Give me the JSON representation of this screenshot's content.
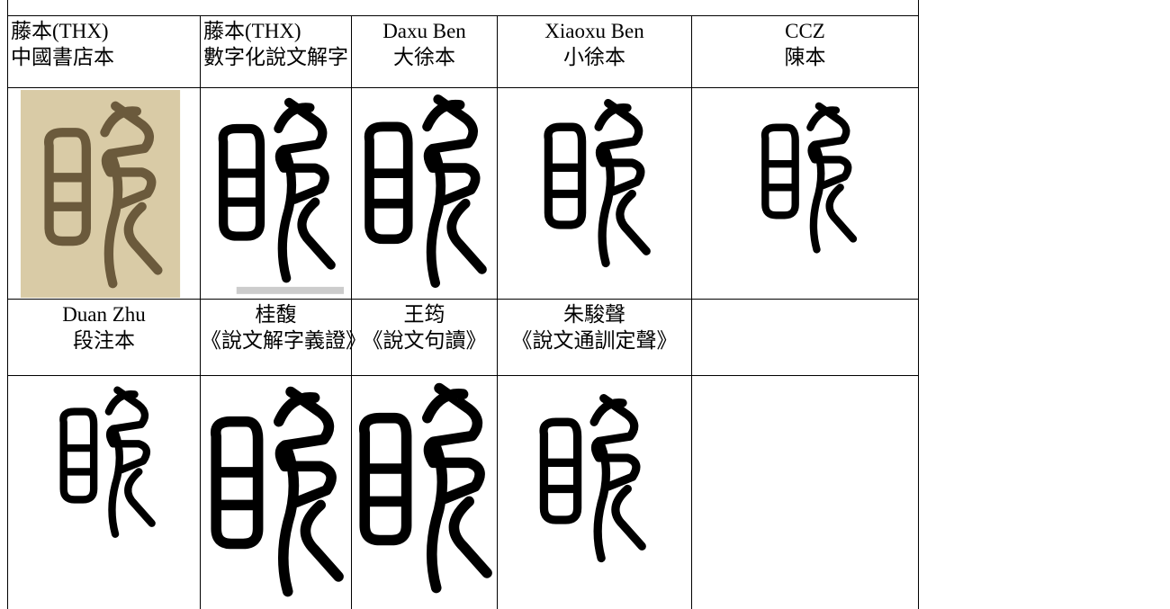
{
  "table": {
    "rows": [
      {
        "cells": [
          {
            "lines": [
              "藤本(THX)",
              "中國書店本"
            ]
          },
          {
            "lines": [
              "藤本(THX)",
              "數字化說文解字"
            ]
          },
          {
            "lines": [
              "Daxu Ben",
              "大徐本"
            ]
          },
          {
            "lines": [
              "Xiaoxu Ben",
              "小徐本"
            ]
          },
          {
            "lines": [
              "CCZ",
              "陳本"
            ]
          }
        ]
      },
      {
        "cells": [
          {
            "lines": [
              "Duan Zhu",
              "段注本"
            ]
          },
          {
            "lines": [
              "桂馥",
              "《說文解字義證》"
            ]
          },
          {
            "lines": [
              "王筠",
              "《說文句讀》"
            ]
          },
          {
            "lines": [
              "朱駿聲",
              "《說文通訓定聲》"
            ]
          }
        ]
      }
    ]
  }
}
